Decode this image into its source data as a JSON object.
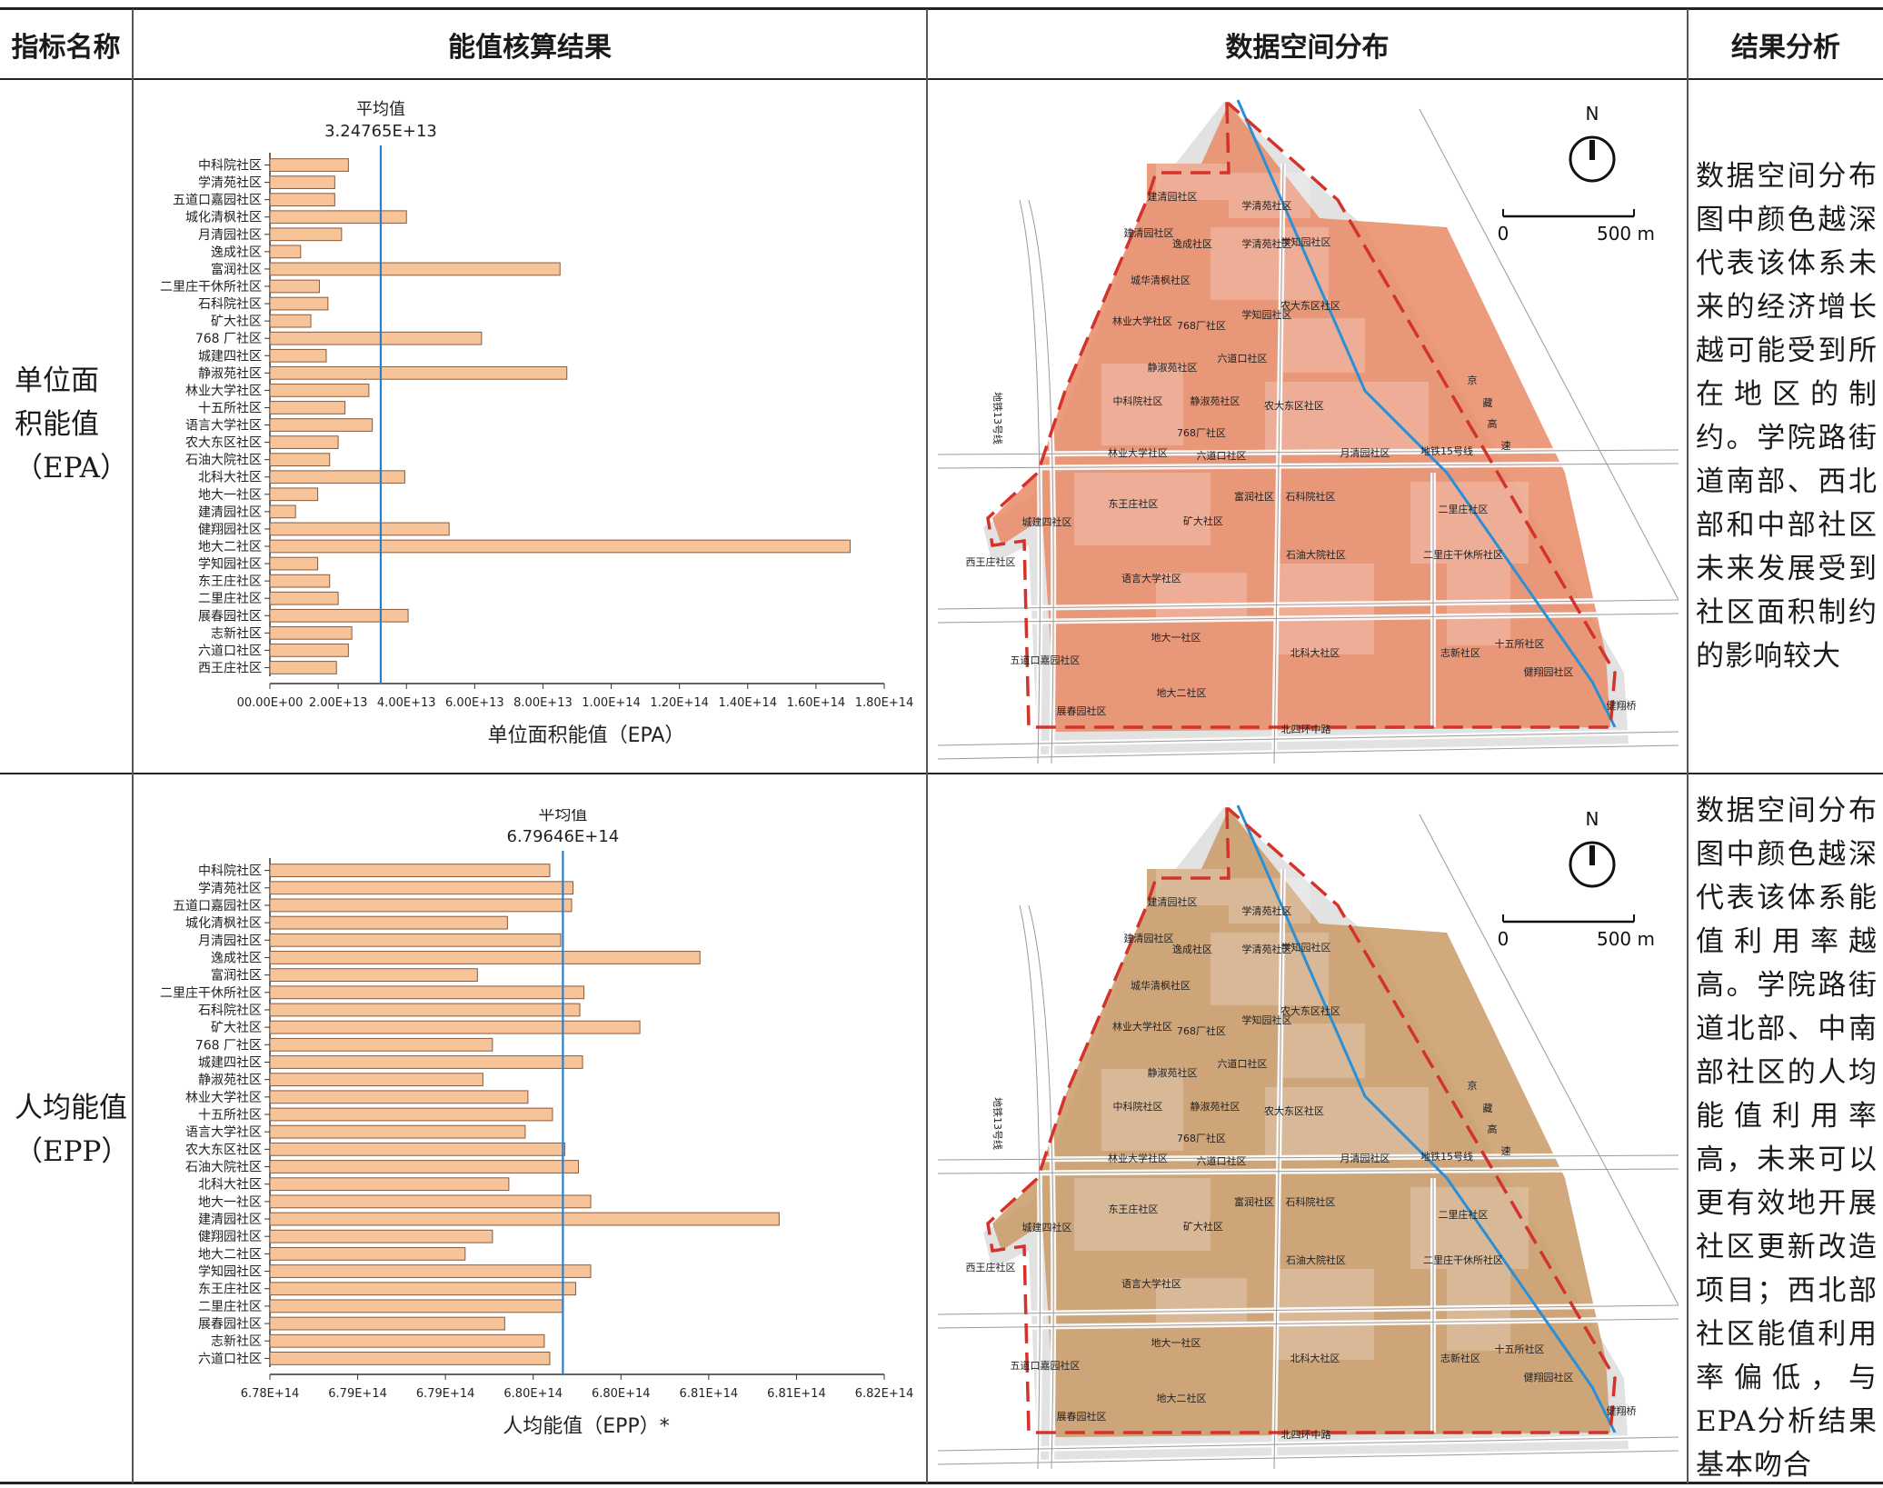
{
  "table": {
    "headers": {
      "indicator": "指标名称",
      "result": "能值核算结果",
      "spatial": "数据空间分布",
      "analysis": "结果分析"
    }
  },
  "rows": [
    {
      "label_lines": [
        "单位面",
        "积能值",
        "（EPA）"
      ],
      "analysis": "数据空间分布图中颜色越深代表该体系未来的经济增长越可能受到所在地区的制约。学院路街道南部、西北部和中部社区未来发展受到社区面积制约的影响较大"
    },
    {
      "label_lines": [
        "人均能值",
        "（EPP）"
      ],
      "analysis": "数据空间分布图中颜色越深代表该体系能值利用率越高。学院路街道北部、中南部社区的人均能值利用率高，未来可以更有效地开展社区更新改造项目；西北部社区能值利用率偏低，与EPA分析结果基本吻合"
    }
  ],
  "colors": {
    "bar_fill": "#f7c49a",
    "bar_stroke": "#8a5a3a",
    "mean_line": "#2a7fc9",
    "map1_fill": "#e98a66",
    "map2_fill": "#c99a66",
    "boundary": "#d2332b",
    "rail": "#2b8fd6"
  },
  "chart_data": [
    {
      "type": "bar",
      "orientation": "horizontal",
      "mean_label": "平均值",
      "mean_value_label": "3.24765E+13",
      "mean": 32476500000000.0,
      "xlabel": "单位面积能值（EPA）",
      "xlim": [
        0,
        180000000000000.0
      ],
      "xticks": [
        "00.00E+00",
        "2.00E+13",
        "4.00E+13",
        "6.00E+13",
        "8.00E+13",
        "1.00E+14",
        "1.20E+14",
        "1.40E+14",
        "1.60E+14",
        "1.80E+14"
      ],
      "categories": [
        "中科院社区",
        "学清苑社区",
        "五道口嘉园社区",
        "城化清枫社区",
        "月清园社区",
        "逸成社区",
        "富润社区",
        "二里庄干休所社区",
        "石科院社区",
        "矿大社区",
        "768 厂社区",
        "城建四社区",
        "静淑苑社区",
        "林业大学社区",
        "十五所社区",
        "语言大学社区",
        "农大东区社区",
        "石油大院社区",
        "北科大社区",
        "地大一社区",
        "建清园社区",
        "健翔园社区",
        "地大二社区",
        "学知园社区",
        "东王庄社区",
        "二里庄社区",
        "展春园社区",
        "志新社区",
        "六道口社区",
        "西王庄社区"
      ],
      "values": [
        23000000000000.0,
        19000000000000.0,
        19000000000000.0,
        40000000000000.0,
        21000000000000.0,
        9000000000000.0,
        85000000000000.0,
        14500000000000.0,
        17000000000000.0,
        12000000000000.0,
        62000000000000.0,
        16500000000000.0,
        87000000000000.0,
        29000000000000.0,
        22000000000000.0,
        30000000000000.0,
        20000000000000.0,
        17500000000000.0,
        39500000000000.0,
        14000000000000.0,
        7500000000000.0,
        52500000000000.0,
        170000000000000.0,
        14000000000000.0,
        17500000000000.0,
        20000000000000.0,
        40500000000000.0,
        24000000000000.0,
        23000000000000.0,
        19500000000000.0
      ]
    },
    {
      "type": "bar",
      "orientation": "horizontal",
      "mean_label": "平均值",
      "mean_value_label": "6.79646E+14",
      "mean": 679646000000000.0,
      "xlabel": "人均能值（EPP）*",
      "xlim": [
        677500000000000.0,
        682000000000000.0
      ],
      "xticks": [
        "6.78E+14",
        "6.79E+14",
        "6.79E+14",
        "6.80E+14",
        "6.80E+14",
        "6.81E+14",
        "6.81E+14",
        "6.82E+14"
      ],
      "categories": [
        "中科院社区",
        "学清苑社区",
        "五道口嘉园社区",
        "城化清枫社区",
        "月清园社区",
        "逸成社区",
        "富润社区",
        "二里庄干休所社区",
        "石科院社区",
        "矿大社区",
        "768 厂社区",
        "城建四社区",
        "静淑苑社区",
        "林业大学社区",
        "十五所社区",
        "语言大学社区",
        "农大东区社区",
        "石油大院社区",
        "北科大社区",
        "地大一社区",
        "建清园社区",
        "健翔园社区",
        "地大二社区",
        "学知园社区",
        "东王庄社区",
        "二里庄社区",
        "展春园社区",
        "志新社区",
        "六道口社区"
      ],
      "values": [
        679550000000000.0,
        679720000000000.0,
        679710000000000.0,
        679240000000000.0,
        679630000000000.0,
        680650000000000.0,
        679020000000000.0,
        679800000000000.0,
        679770000000000.0,
        680210000000000.0,
        679130000000000.0,
        679790000000000.0,
        679060000000000.0,
        679390000000000.0,
        679570000000000.0,
        679370000000000.0,
        679660000000000.0,
        679760000000000.0,
        679250000000000.0,
        679850000000000.0,
        681230000000000.0,
        679130000000000.0,
        678930000000000.0,
        679850000000000.0,
        679740000000000.0,
        679650000000000.0,
        679220000000000.0,
        679510000000000.0,
        679550000000000.0
      ]
    }
  ],
  "maps": [
    {
      "north": "N",
      "scale_zero": "0",
      "scale_end": "500 m",
      "labels": [
        "建清园社区",
        "学清苑社区",
        "建清园社区",
        "逸成社区",
        "学清苑社区",
        "学知园社区",
        "城华清枫社区",
        "林业大学社区",
        "768厂社区",
        "学知园社区",
        "农大东区社区",
        "静淑苑社区",
        "六道口社区",
        "中科院社区",
        "静淑苑社区",
        "农大东区社区",
        "768厂社区",
        "林业大学社区",
        "六道口社区",
        "月清园社区",
        "东王庄社区",
        "富润社区",
        "石科院社区",
        "矿大社区",
        "城建四社区",
        "二里庄社区",
        "西王庄社区",
        "石油大院社区",
        "二里庄干休所社区",
        "语言大学社区",
        "地大一社区",
        "五道口嘉园社区",
        "北科大社区",
        "志新社区",
        "十五所社区",
        "健翔园社区",
        "地大二社区",
        "展春园社区",
        "健翔桥",
        "北四环中路",
        "地铁13号线",
        "地铁15号线",
        "京",
        "藏",
        "高",
        "速"
      ]
    },
    {
      "north": "N",
      "scale_zero": "0",
      "scale_end": "500 m",
      "labels": [
        "建清园社区",
        "学清苑社区",
        "建清园社区",
        "逸成社区",
        "学清苑社区",
        "学知园社区",
        "城华清枫社区",
        "林业大学社区",
        "768厂社区",
        "学知园社区",
        "农大东区社区",
        "静淑苑社区",
        "六道口社区",
        "中科院社区",
        "静淑苑社区",
        "农大东区社区",
        "768厂社区",
        "林业大学社区",
        "六道口社区",
        "月清园社区",
        "东王庄社区",
        "富润社区",
        "石科院社区",
        "矿大社区",
        "城建四社区",
        "二里庄社区",
        "西王庄社区",
        "石油大院社区",
        "二里庄干休所社区",
        "语言大学社区",
        "地大一社区",
        "五道口嘉园社区",
        "北科大社区",
        "志新社区",
        "十五所社区",
        "健翔园社区",
        "地大二社区",
        "展春园社区",
        "健翔桥",
        "北四环中路",
        "地铁13号线",
        "地铁15号线",
        "京",
        "藏",
        "高",
        "速"
      ]
    }
  ]
}
